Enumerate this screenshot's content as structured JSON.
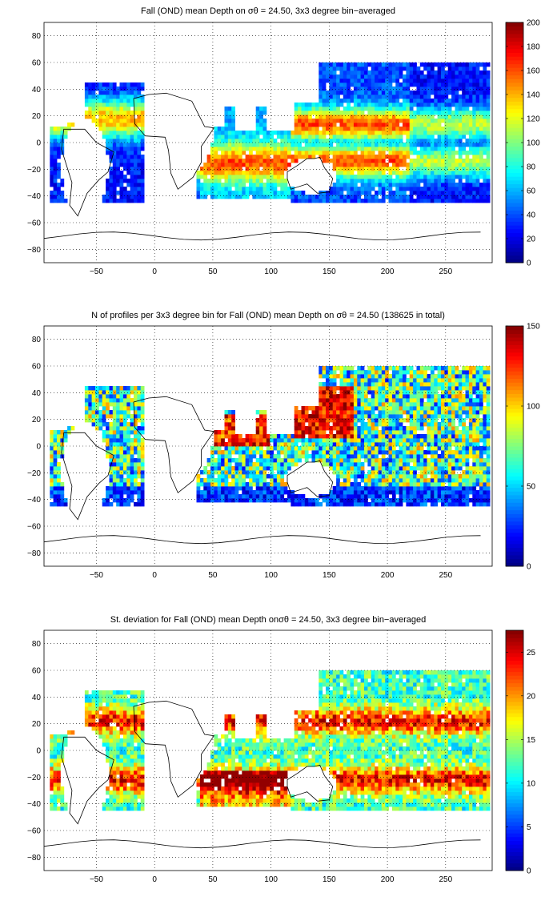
{
  "figure": {
    "panels": [
      {
        "title": "Fall (OND) mean Depth on σθ = 24.50, 3x3 degree bin−averaged",
        "xticks": [
          "−50",
          "0",
          "50",
          "100",
          "150",
          "200",
          "250"
        ],
        "yticks": [
          "80",
          "60",
          "40",
          "20",
          "0",
          "−20",
          "−40",
          "−60",
          "−80"
        ],
        "colorbar_ticks": [
          "0",
          "20",
          "40",
          "60",
          "80",
          "100",
          "120",
          "140",
          "160",
          "180",
          "200"
        ]
      },
      {
        "title": "N of profiles per 3x3 degree bin for Fall (OND) mean Depth on σθ = 24.50 (138625 in total)",
        "xticks": [
          "−50",
          "0",
          "50",
          "100",
          "150",
          "200",
          "250"
        ],
        "yticks": [
          "80",
          "60",
          "40",
          "20",
          "0",
          "−20",
          "−40",
          "−60",
          "−80"
        ],
        "colorbar_ticks": [
          "0",
          "50",
          "100",
          "150"
        ]
      },
      {
        "title": "St. deviation for Fall (OND) mean Depth onσθ = 24.50, 3x3 degree bin−averaged",
        "xticks": [
          "−50",
          "0",
          "50",
          "100",
          "150",
          "200",
          "250"
        ],
        "yticks": [
          "80",
          "60",
          "40",
          "20",
          "0",
          "−20",
          "−40",
          "−60",
          "−80"
        ],
        "colorbar_ticks": [
          "0",
          "5",
          "10",
          "15",
          "20",
          "25"
        ]
      }
    ]
  },
  "chart_data": [
    {
      "type": "heatmap",
      "title": "Fall (OND) mean Depth on σθ = 24.50, 3x3 degree bin−averaged",
      "xlim": [
        -95,
        290
      ],
      "ylim": [
        -90,
        90
      ],
      "clim": [
        0,
        200
      ],
      "colormap": "jet",
      "grid": true,
      "bin_size_deg": 3,
      "regions": [
        {
          "lon": [
            -80,
            -20
          ],
          "lat": [
            -40,
            40
          ],
          "value_range": [
            20,
            160
          ]
        },
        {
          "lon": [
            40,
            115
          ],
          "lat": [
            -40,
            25
          ],
          "value_range": [
            60,
            170
          ]
        },
        {
          "lon": [
            120,
            280
          ],
          "lat": [
            -45,
            45
          ],
          "value_range": [
            40,
            190
          ]
        }
      ],
      "peak_value": 190
    },
    {
      "type": "heatmap",
      "title": "N of profiles per 3x3 degree bin for Fall (OND) mean Depth on σθ = 24.50 (138625 in total)",
      "xlim": [
        -95,
        290
      ],
      "ylim": [
        -90,
        90
      ],
      "clim": [
        0,
        150
      ],
      "colormap": "jet",
      "grid": true,
      "total_profiles": 138625,
      "regions": [
        {
          "lon": [
            -80,
            -20
          ],
          "lat": [
            -40,
            40
          ],
          "value_range": [
            5,
            110
          ]
        },
        {
          "lon": [
            40,
            115
          ],
          "lat": [
            -40,
            25
          ],
          "value_range": [
            10,
            150
          ]
        },
        {
          "lon": [
            120,
            280
          ],
          "lat": [
            -45,
            60
          ],
          "value_range": [
            10,
            150
          ]
        }
      ],
      "peak_value": 150
    },
    {
      "type": "heatmap",
      "title": "St. deviation for Fall (OND) mean Depth onσθ = 24.50, 3x3 degree bin−averaged",
      "xlim": [
        -95,
        290
      ],
      "ylim": [
        -90,
        90
      ],
      "clim": [
        0,
        27.5
      ],
      "colormap": "jet",
      "grid": true,
      "regions": [
        {
          "lon": [
            -80,
            -20
          ],
          "lat": [
            -40,
            40
          ],
          "value_range": [
            5,
            25
          ]
        },
        {
          "lon": [
            40,
            115
          ],
          "lat": [
            -40,
            25
          ],
          "value_range": [
            8,
            27
          ]
        },
        {
          "lon": [
            120,
            280
          ],
          "lat": [
            -45,
            45
          ],
          "value_range": [
            6,
            27
          ]
        }
      ],
      "peak_value": 27
    }
  ]
}
